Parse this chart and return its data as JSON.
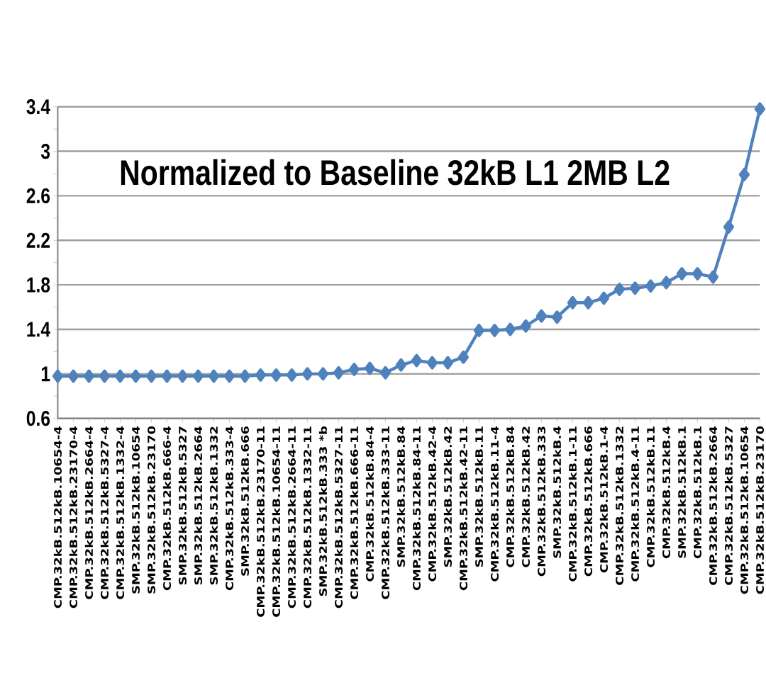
{
  "chart_data": {
    "type": "line",
    "title": "Normalized to Baseline 32kB L1 2MB L2",
    "categories": [
      "CMP.32kB.512kB.10654-4",
      "CMP.32kB.512kB.23170-4",
      "CMP.32kB.512kB.2664-4",
      "CMP.32kB.512kB.5327-4",
      "CMP.32kB.512kB.1332-4",
      "SMP.32kB.512kB.10654",
      "SMP.32kB.512kB.23170",
      "CMP.32kB.512kB.666-4",
      "SMP.32kB.512kB.5327",
      "SMP.32kB.512kB.2664",
      "SMP.32kB.512kB.1332",
      "CMP.32kB.512kB.333-4",
      "SMP.32kB.512kB.666",
      "CMP.32kB.512kB.23170-11",
      "CMP.32kB.512kB.10654-11",
      "CMP.32kB.512kB.2664-11",
      "CMP.32kB.512kB.1332-11",
      "SMP.32kB.512kB.333 *b",
      "CMP.32kB.512kB.5327-11",
      "CMP.32kB.512kB.666-11",
      "CMP.32kB.512kB.84-4",
      "CMP.32kB.512kB.333-11",
      "SMP.32kB.512kB.84",
      "CMP.32kB.512kB.84-11",
      "CMP.32kB.512kB.42-4",
      "SMP.32kB.512kB.42",
      "CMP.32kB.512kB.42-11",
      "SMP.32kB.512kB.11",
      "CMP.32kB.512kB.11-4",
      "CMP.32kB.512kB.84",
      "CMP.32kB.512kB.42",
      "CMP.32kB.512kB.333",
      "SMP.32kB.512kB.4",
      "CMP.32kB.512kB.1-11",
      "CMP.32kB.512kB.666",
      "CMP.32kB.512kB.1-4",
      "CMP.32kB.512kB.1332",
      "CMP.32kB.512kB.4-11",
      "CMP.32kB.512kB.11",
      "CMP.32kB.512kB.4",
      "SMP.32kB.512kB.1",
      "CMP.32kB.512kB.1",
      "CMP.32kB.512kB.2664",
      "CMP.32kB.512kB.5327",
      "CMP.32kB.512kB.10654",
      "CMP.32kB.512kB.23170"
    ],
    "series": [
      {
        "color": "#4f81bd",
        "values": [
          0.98,
          0.98,
          0.98,
          0.98,
          0.98,
          0.98,
          0.98,
          0.98,
          0.98,
          0.98,
          0.98,
          0.98,
          0.98,
          0.99,
          0.99,
          0.99,
          1.0,
          1.0,
          1.01,
          1.04,
          1.05,
          1.01,
          1.08,
          1.12,
          1.1,
          1.1,
          1.15,
          1.39,
          1.39,
          1.4,
          1.43,
          1.52,
          1.51,
          1.64,
          1.64,
          1.68,
          1.76,
          1.77,
          1.79,
          1.82,
          1.9,
          1.9,
          1.87,
          2.32,
          2.79,
          3.38
        ]
      }
    ],
    "ylim": [
      0.6,
      3.4
    ],
    "yticks": [
      0.6,
      1,
      1.4,
      1.8,
      2.2,
      2.6,
      3,
      3.4
    ],
    "grid": "y",
    "marker": "diamond",
    "line_style": "solid"
  }
}
